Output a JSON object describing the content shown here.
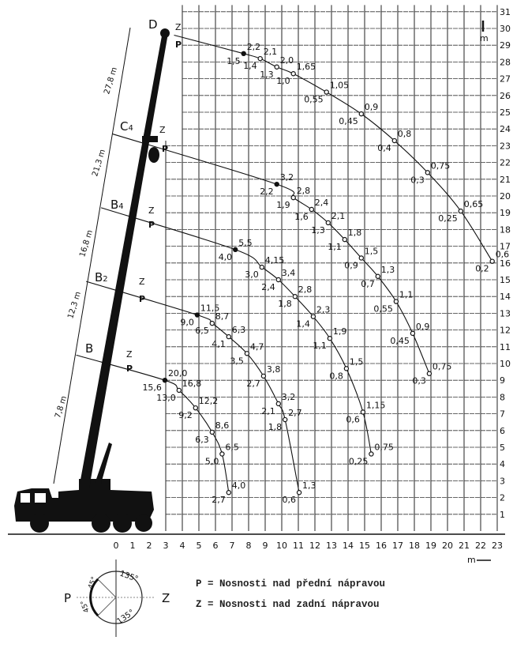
{
  "axes": {
    "x_ticks": [
      0,
      1,
      2,
      3,
      4,
      5,
      6,
      7,
      8,
      9,
      10,
      11,
      12,
      13,
      14,
      15,
      16,
      17,
      18,
      19,
      20,
      21,
      22,
      23
    ],
    "y_ticks": [
      1,
      2,
      3,
      4,
      5,
      6,
      7,
      8,
      9,
      10,
      11,
      12,
      13,
      14,
      15,
      16,
      17,
      18,
      19,
      20,
      21,
      22,
      23,
      24,
      25,
      26,
      27,
      28,
      29,
      30,
      31
    ],
    "x_unit": "m",
    "y_unit": "m"
  },
  "boom_sections": [
    {
      "name": "D",
      "length": "27,8 m"
    },
    {
      "name": "C4",
      "length": "21,3 m"
    },
    {
      "name": "B4",
      "length": "16,8 m"
    },
    {
      "name": "B2",
      "length": "12,3 m"
    },
    {
      "name": "B",
      "length": "7,8 m"
    }
  ],
  "curve_labels": {
    "z": "Z",
    "p": "P"
  },
  "curves": [
    {
      "boom": "D",
      "start": [
        3.5,
        29.6
      ],
      "points": [
        {
          "x": 7.7,
          "y": 28.5,
          "z": "2,2",
          "p": "1,5"
        },
        {
          "x": 8.7,
          "y": 28.2,
          "z": "2,1",
          "p": "1,4"
        },
        {
          "x": 9.7,
          "y": 27.7,
          "z": "2,0",
          "p": "1,3"
        },
        {
          "x": 10.7,
          "y": 27.3,
          "z": "1,65",
          "p": "1,0"
        },
        {
          "x": 12.7,
          "y": 26.2,
          "z": "1,05",
          "p": "0,55"
        },
        {
          "x": 14.8,
          "y": 24.9,
          "z": "0,9",
          "p": "0,45"
        },
        {
          "x": 16.8,
          "y": 23.3,
          "z": "0,8",
          "p": "0,4"
        },
        {
          "x": 18.8,
          "y": 21.4,
          "z": "0,75",
          "p": "0,3"
        },
        {
          "x": 20.8,
          "y": 19.1,
          "z": "0,65",
          "p": "0,25"
        },
        {
          "x": 22.7,
          "y": 16.1,
          "z": "0,6",
          "p": "0,2"
        }
      ]
    },
    {
      "boom": "C4",
      "start": [
        -0.2,
        23.7
      ],
      "points": [
        {
          "x": 9.7,
          "y": 20.7,
          "z": "3,2",
          "p": "2,2"
        },
        {
          "x": 10.7,
          "y": 19.9,
          "z": "2,8",
          "p": "1,9"
        },
        {
          "x": 11.8,
          "y": 19.2,
          "z": "2,4",
          "p": "1,6"
        },
        {
          "x": 12.8,
          "y": 18.4,
          "z": "2,1",
          "p": "1,3"
        },
        {
          "x": 13.8,
          "y": 17.4,
          "z": "1,8",
          "p": "1,1"
        },
        {
          "x": 14.8,
          "y": 16.3,
          "z": "1,5",
          "p": "0,9"
        },
        {
          "x": 15.8,
          "y": 15.2,
          "z": "1,3",
          "p": "0,7"
        },
        {
          "x": 16.9,
          "y": 13.7,
          "z": "1,1",
          "p": "0,55"
        },
        {
          "x": 17.9,
          "y": 11.8,
          "z": "0,9",
          "p": "0,45"
        },
        {
          "x": 18.9,
          "y": 9.4,
          "z": "0,75",
          "p": "0,3"
        }
      ]
    },
    {
      "boom": "B4",
      "start": [
        -0.9,
        19.3
      ],
      "points": [
        {
          "x": 7.2,
          "y": 16.8,
          "z": "5,5",
          "p": "4,0"
        },
        {
          "x": 8.8,
          "y": 15.75,
          "z": "4,15",
          "p": "3,0"
        },
        {
          "x": 9.8,
          "y": 15.0,
          "z": "3,4",
          "p": "2,4"
        },
        {
          "x": 10.8,
          "y": 14.0,
          "z": "2,8",
          "p": "1,8"
        },
        {
          "x": 11.9,
          "y": 12.8,
          "z": "2,3",
          "p": "1,4"
        },
        {
          "x": 12.9,
          "y": 11.5,
          "z": "1,9",
          "p": "1,1"
        },
        {
          "x": 13.9,
          "y": 9.7,
          "z": "1,5",
          "p": "0,8"
        },
        {
          "x": 14.9,
          "y": 7.1,
          "z": "1,15",
          "p": "0,6"
        },
        {
          "x": 15.4,
          "y": 4.6,
          "z": "0,75",
          "p": "0,25"
        }
      ]
    },
    {
      "boom": "B2",
      "start": [
        -1.8,
        14.9
      ],
      "points": [
        {
          "x": 4.9,
          "y": 12.9,
          "z": "11,5",
          "p": "9,0"
        },
        {
          "x": 5.8,
          "y": 12.4,
          "z": "8,7",
          "p": "6,5"
        },
        {
          "x": 6.8,
          "y": 11.6,
          "z": "6,3",
          "p": "4,1"
        },
        {
          "x": 7.9,
          "y": 10.6,
          "z": "4,7",
          "p": "3,5"
        },
        {
          "x": 8.9,
          "y": 9.25,
          "z": "3,8",
          "p": "2,7"
        },
        {
          "x": 9.8,
          "y": 7.6,
          "z": "3,2",
          "p": "2,1"
        },
        {
          "x": 10.2,
          "y": 6.65,
          "z": "2,7",
          "p": "1,8"
        },
        {
          "x": 11.05,
          "y": 2.3,
          "z": "1,3",
          "p": "0,6"
        }
      ]
    },
    {
      "boom": "B",
      "start": [
        -2.4,
        10.5
      ],
      "points": [
        {
          "x": 2.95,
          "y": 9.0,
          "z": "20,0",
          "p": "15,6"
        },
        {
          "x": 3.8,
          "y": 8.4,
          "z": "16,8",
          "p": "13,0"
        },
        {
          "x": 4.8,
          "y": 7.35,
          "z": "12,2",
          "p": "9,2"
        },
        {
          "x": 5.8,
          "y": 5.9,
          "z": "8,6",
          "p": "6,3"
        },
        {
          "x": 6.4,
          "y": 4.6,
          "z": "6,5",
          "p": "5,0"
        },
        {
          "x": 6.8,
          "y": 2.3,
          "z": "4,0",
          "p": "2,7"
        }
      ]
    }
  ],
  "slew_diagram": {
    "left": "P",
    "right": "Z",
    "angles": [
      "135°",
      "135°",
      "45°",
      "45°"
    ]
  },
  "legend": [
    "P = Nosnosti nad přední nápravou",
    "Z = Nosnosti nad zadní nápravou"
  ]
}
